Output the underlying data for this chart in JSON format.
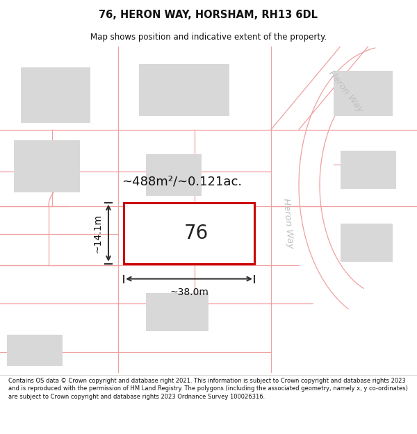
{
  "title": "76, HERON WAY, HORSHAM, RH13 6DL",
  "subtitle": "Map shows position and indicative extent of the property.",
  "footer": "Contains OS data © Crown copyright and database right 2021. This information is subject to Crown copyright and database rights 2023 and is reproduced with the permission of HM Land Registry. The polygons (including the associated geometry, namely x, y co-ordinates) are subject to Crown copyright and database rights 2023 Ordnance Survey 100026316.",
  "bg_color": "#ffffff",
  "plot_number": "76",
  "area_label": "~488m²/~0.121ac.",
  "width_label": "~38.0m",
  "height_label": "~14.1m",
  "plot_fill": "#ffffff",
  "plot_edge": "#cc0000",
  "road_color": "#f0a0a0",
  "building_fill": "#d8d8d8",
  "road_label_color": "#c0c0c0"
}
